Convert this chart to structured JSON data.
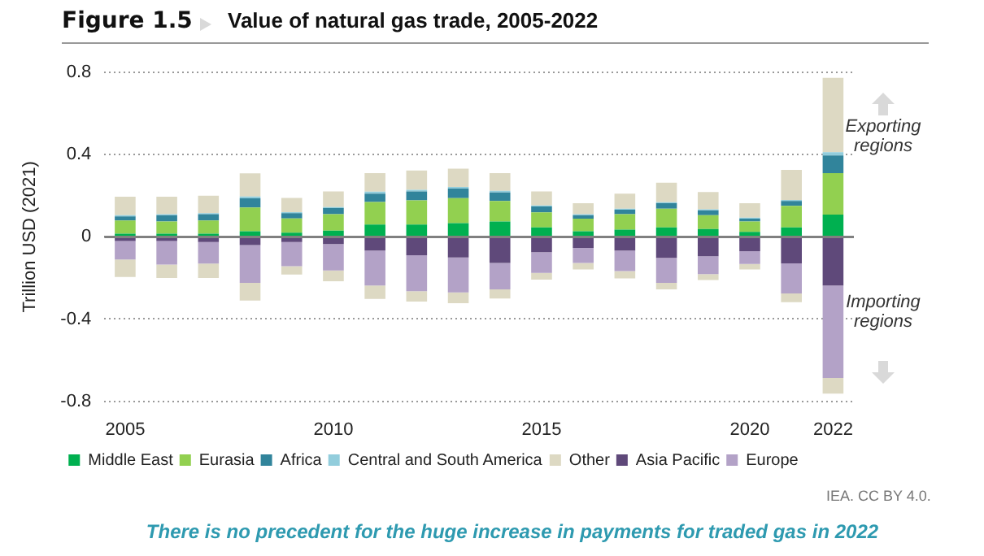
{
  "chart_data": {
    "type": "bar",
    "title": "Value of natural gas trade, 2005-2022",
    "ylabel": "Trillion USD (2021)",
    "categories": [
      "2005",
      null,
      null,
      null,
      null,
      "2010",
      null,
      null,
      null,
      null,
      "2015",
      null,
      null,
      null,
      null,
      "2020",
      null,
      "2022"
    ],
    "stacked": true,
    "series": [
      {
        "name": "Middle East",
        "color": "#00b050",
        "values": [
          0.015,
          0.015,
          0.015,
          0.027,
          0.02,
          0.03,
          0.06,
          0.06,
          0.067,
          0.075,
          0.046,
          0.027,
          0.035,
          0.046,
          0.038,
          0.024,
          0.046,
          0.108
        ]
      },
      {
        "name": "Eurasia",
        "color": "#92d050",
        "values": [
          0.065,
          0.06,
          0.065,
          0.116,
          0.07,
          0.08,
          0.11,
          0.118,
          0.122,
          0.1,
          0.073,
          0.062,
          0.075,
          0.091,
          0.067,
          0.051,
          0.105,
          0.202
        ]
      },
      {
        "name": "Africa",
        "color": "#31849b",
        "values": [
          0.02,
          0.03,
          0.03,
          0.045,
          0.025,
          0.03,
          0.04,
          0.043,
          0.046,
          0.041,
          0.029,
          0.016,
          0.022,
          0.027,
          0.024,
          0.014,
          0.024,
          0.086
        ]
      },
      {
        "name": "Central and South America",
        "color": "#92cddc",
        "values": [
          0.005,
          0.005,
          0.005,
          0.008,
          0.005,
          0.005,
          0.01,
          0.008,
          0.008,
          0.008,
          0.005,
          0.005,
          0.005,
          0.005,
          0.005,
          0.005,
          0.005,
          0.016
        ]
      },
      {
        "name": "Other",
        "color": "#ddd9c3",
        "values": [
          0.09,
          0.085,
          0.085,
          0.113,
          0.07,
          0.076,
          0.09,
          0.094,
          0.089,
          0.086,
          0.068,
          0.054,
          0.073,
          0.095,
          0.084,
          0.07,
          0.146,
          0.362
        ]
      },
      {
        "name": "Asia Pacific",
        "color": "#5f497a",
        "values": [
          -0.02,
          -0.02,
          -0.025,
          -0.04,
          -0.025,
          -0.035,
          -0.067,
          -0.089,
          -0.1,
          -0.127,
          -0.075,
          -0.054,
          -0.067,
          -0.102,
          -0.094,
          -0.07,
          -0.129,
          -0.237
        ]
      },
      {
        "name": "Europe",
        "color": "#b3a2c7",
        "values": [
          -0.09,
          -0.115,
          -0.105,
          -0.184,
          -0.118,
          -0.129,
          -0.17,
          -0.175,
          -0.17,
          -0.129,
          -0.1,
          -0.073,
          -0.1,
          -0.122,
          -0.087,
          -0.062,
          -0.146,
          -0.45
        ]
      },
      {
        "color": "#ddd9c3",
        "values": [
          -0.085,
          -0.065,
          -0.07,
          -0.086,
          -0.04,
          -0.052,
          -0.065,
          -0.051,
          -0.053,
          -0.044,
          -0.033,
          -0.032,
          -0.035,
          -0.032,
          -0.029,
          -0.027,
          -0.043,
          -0.076
        ]
      }
    ],
    "ylim": [
      -0.8,
      0.8
    ],
    "yticks": [
      -0.8,
      -0.4,
      0,
      0.4,
      0.8
    ],
    "grid": "y",
    "legend": "bottom",
    "ref_lines": [
      {
        "axis": "y",
        "value": 0,
        "color": "#808080",
        "line_style": "solid"
      }
    ],
    "annotations": [
      "Figure 1.5",
      "Exporting regions",
      "Importing regions",
      "IEA. CC BY 4.0.",
      "There is no precedent for the huge increase in payments for traded gas in 2022"
    ]
  }
}
